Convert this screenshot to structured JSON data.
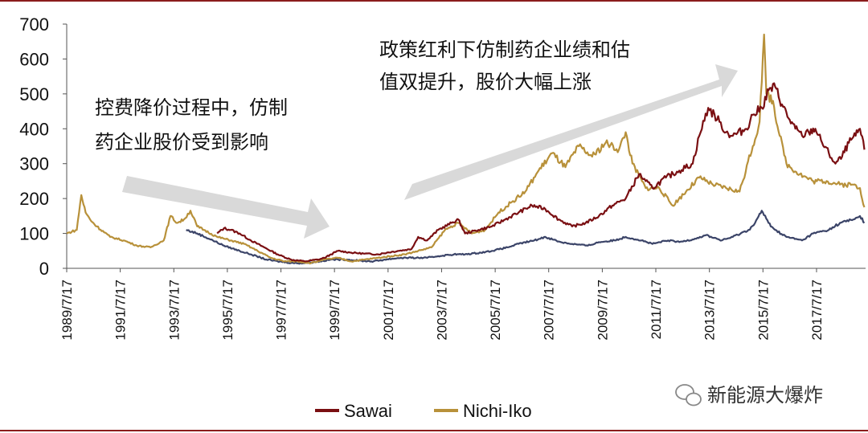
{
  "chart_data": {
    "type": "line",
    "title": "",
    "xlabel": "",
    "ylabel": "",
    "ylim": [
      0,
      700
    ],
    "yticks": [
      0,
      100,
      200,
      300,
      400,
      500,
      600,
      700
    ],
    "x_tick_labels": [
      "1989/7/17",
      "1991/7/17",
      "1993/7/17",
      "1995/7/17",
      "1997/7/17",
      "1999/7/17",
      "2001/7/17",
      "2003/7/17",
      "2005/7/17",
      "2007/7/17",
      "2009/7/17",
      "2011/7/17",
      "2013/7/17",
      "2015/7/17",
      "2017/7/17"
    ],
    "grid": false,
    "legend_position": "bottom",
    "series": [
      {
        "name": "Sawai",
        "color": "#7a0f12",
        "points": [
          [
            "1995/3/1",
            100
          ],
          [
            "1995/6/1",
            115
          ],
          [
            "1995/9/1",
            110
          ],
          [
            "1996/1/1",
            100
          ],
          [
            "1996/6/1",
            80
          ],
          [
            "1996/12/1",
            60
          ],
          [
            "1997/6/1",
            40
          ],
          [
            "1997/12/1",
            25
          ],
          [
            "1998/6/1",
            20
          ],
          [
            "1998/12/1",
            25
          ],
          [
            "1999/3/1",
            30
          ],
          [
            "1999/6/1",
            40
          ],
          [
            "1999/9/1",
            50
          ],
          [
            "2000/3/1",
            45
          ],
          [
            "2000/9/1",
            42
          ],
          [
            "2001/3/1",
            40
          ],
          [
            "2001/7/1",
            45
          ],
          [
            "2001/12/1",
            50
          ],
          [
            "2002/6/1",
            55
          ],
          [
            "2002/9/1",
            90
          ],
          [
            "2003/1/1",
            80
          ],
          [
            "2003/6/1",
            110
          ],
          [
            "2003/12/1",
            130
          ],
          [
            "2004/3/1",
            140
          ],
          [
            "2004/6/1",
            100
          ],
          [
            "2004/12/1",
            110
          ],
          [
            "2005/6/1",
            120
          ],
          [
            "2005/12/1",
            140
          ],
          [
            "2006/6/1",
            160
          ],
          [
            "2006/12/1",
            180
          ],
          [
            "2007/6/1",
            170
          ],
          [
            "2007/12/1",
            140
          ],
          [
            "2008/6/1",
            120
          ],
          [
            "2008/12/1",
            130
          ],
          [
            "2009/6/1",
            150
          ],
          [
            "2009/12/1",
            180
          ],
          [
            "2010/6/1",
            200
          ],
          [
            "2010/12/1",
            270
          ],
          [
            "2011/3/1",
            250
          ],
          [
            "2011/6/1",
            230
          ],
          [
            "2011/12/1",
            260
          ],
          [
            "2012/6/1",
            280
          ],
          [
            "2012/12/1",
            300
          ],
          [
            "2013/3/1",
            380
          ],
          [
            "2013/7/1",
            460
          ],
          [
            "2013/12/1",
            420
          ],
          [
            "2014/3/1",
            390
          ],
          [
            "2014/6/1",
            380
          ],
          [
            "2014/12/1",
            400
          ],
          [
            "2015/3/1",
            440
          ],
          [
            "2015/7/1",
            460
          ],
          [
            "2015/10/1",
            510
          ],
          [
            "2016/1/1",
            520
          ],
          [
            "2016/4/1",
            470
          ],
          [
            "2016/7/1",
            430
          ],
          [
            "2016/10/1",
            400
          ],
          [
            "2017/1/1",
            380
          ],
          [
            "2017/4/1",
            390
          ],
          [
            "2017/7/1",
            400
          ],
          [
            "2017/10/1",
            360
          ],
          [
            "2018/1/1",
            330
          ],
          [
            "2018/4/1",
            300
          ],
          [
            "2018/7/1",
            320
          ],
          [
            "2018/10/1",
            360
          ],
          [
            "2019/1/1",
            380
          ],
          [
            "2019/3/1",
            400
          ],
          [
            "2019/5/1",
            340
          ]
        ]
      },
      {
        "name": "Nichi-Iko",
        "color": "#b8913a",
        "points": [
          [
            "1989/7/17",
            100
          ],
          [
            "1989/12/1",
            110
          ],
          [
            "1990/2/1",
            210
          ],
          [
            "1990/4/1",
            160
          ],
          [
            "1990/6/1",
            140
          ],
          [
            "1990/9/1",
            120
          ],
          [
            "1991/3/1",
            90
          ],
          [
            "1991/9/1",
            80
          ],
          [
            "1992/3/1",
            65
          ],
          [
            "1992/9/1",
            60
          ],
          [
            "1993/3/1",
            80
          ],
          [
            "1993/6/1",
            150
          ],
          [
            "1993/9/1",
            130
          ],
          [
            "1993/12/1",
            140
          ],
          [
            "1994/3/1",
            165
          ],
          [
            "1994/6/1",
            120
          ],
          [
            "1994/9/1",
            110
          ],
          [
            "1995/3/1",
            90
          ],
          [
            "1995/9/1",
            80
          ],
          [
            "1996/3/1",
            70
          ],
          [
            "1996/9/1",
            50
          ],
          [
            "1997/3/1",
            30
          ],
          [
            "1997/9/1",
            20
          ],
          [
            "1998/3/1",
            20
          ],
          [
            "1998/9/1",
            15
          ],
          [
            "1999/3/1",
            25
          ],
          [
            "1999/9/1",
            30
          ],
          [
            "2000/3/1",
            20
          ],
          [
            "2000/9/1",
            25
          ],
          [
            "2001/3/1",
            30
          ],
          [
            "2001/9/1",
            35
          ],
          [
            "2002/3/1",
            40
          ],
          [
            "2002/9/1",
            50
          ],
          [
            "2003/3/1",
            60
          ],
          [
            "2003/9/1",
            110
          ],
          [
            "2004/3/1",
            130
          ],
          [
            "2004/9/1",
            100
          ],
          [
            "2005/3/1",
            110
          ],
          [
            "2005/9/1",
            160
          ],
          [
            "2006/3/1",
            190
          ],
          [
            "2006/9/1",
            220
          ],
          [
            "2007/3/1",
            280
          ],
          [
            "2007/9/1",
            330
          ],
          [
            "2008/3/1",
            290
          ],
          [
            "2008/9/1",
            350
          ],
          [
            "2009/3/1",
            320
          ],
          [
            "2009/9/1",
            360
          ],
          [
            "2010/3/1",
            340
          ],
          [
            "2010/6/1",
            390
          ],
          [
            "2010/9/1",
            300
          ],
          [
            "2011/3/1",
            230
          ],
          [
            "2011/9/1",
            230
          ],
          [
            "2012/3/1",
            180
          ],
          [
            "2012/9/1",
            220
          ],
          [
            "2013/3/1",
            260
          ],
          [
            "2013/9/1",
            240
          ],
          [
            "2014/3/1",
            230
          ],
          [
            "2014/9/1",
            220
          ],
          [
            "2015/3/1",
            350
          ],
          [
            "2015/6/1",
            420
          ],
          [
            "2015/8/1",
            670
          ],
          [
            "2015/9/1",
            500
          ],
          [
            "2015/12/1",
            480
          ],
          [
            "2016/3/1",
            380
          ],
          [
            "2016/6/1",
            300
          ],
          [
            "2016/12/1",
            270
          ],
          [
            "2017/6/1",
            250
          ],
          [
            "2017/12/1",
            250
          ],
          [
            "2018/6/1",
            240
          ],
          [
            "2018/12/1",
            240
          ],
          [
            "2019/3/1",
            230
          ],
          [
            "2019/5/1",
            175
          ]
        ]
      },
      {
        "name": "",
        "color": "#3b4468",
        "points": [
          [
            "1994/1/1",
            110
          ],
          [
            "1994/6/1",
            100
          ],
          [
            "1995/1/1",
            80
          ],
          [
            "1995/6/1",
            65
          ],
          [
            "1996/1/1",
            50
          ],
          [
            "1996/6/1",
            40
          ],
          [
            "1997/1/1",
            25
          ],
          [
            "1997/6/1",
            20
          ],
          [
            "1998/1/1",
            15
          ],
          [
            "1998/6/1",
            15
          ],
          [
            "1999/1/1",
            20
          ],
          [
            "1999/6/1",
            25
          ],
          [
            "2000/1/1",
            25
          ],
          [
            "2000/6/1",
            22
          ],
          [
            "2001/1/1",
            20
          ],
          [
            "2001/6/1",
            25
          ],
          [
            "2002/1/1",
            30
          ],
          [
            "2002/6/1",
            30
          ],
          [
            "2003/1/1",
            30
          ],
          [
            "2003/6/1",
            35
          ],
          [
            "2004/1/1",
            40
          ],
          [
            "2004/6/1",
            40
          ],
          [
            "2005/1/1",
            45
          ],
          [
            "2005/6/1",
            50
          ],
          [
            "2006/1/1",
            60
          ],
          [
            "2006/6/1",
            70
          ],
          [
            "2007/1/1",
            80
          ],
          [
            "2007/6/1",
            90
          ],
          [
            "2008/1/1",
            75
          ],
          [
            "2008/6/1",
            70
          ],
          [
            "2009/1/1",
            65
          ],
          [
            "2009/6/1",
            75
          ],
          [
            "2010/1/1",
            80
          ],
          [
            "2010/6/1",
            90
          ],
          [
            "2011/1/1",
            80
          ],
          [
            "2011/6/1",
            70
          ],
          [
            "2012/1/1",
            80
          ],
          [
            "2012/6/1",
            75
          ],
          [
            "2013/1/1",
            85
          ],
          [
            "2013/6/1",
            95
          ],
          [
            "2014/1/1",
            80
          ],
          [
            "2014/6/1",
            90
          ],
          [
            "2015/1/1",
            110
          ],
          [
            "2015/4/1",
            130
          ],
          [
            "2015/7/1",
            165
          ],
          [
            "2015/10/1",
            130
          ],
          [
            "2016/1/1",
            110
          ],
          [
            "2016/6/1",
            90
          ],
          [
            "2017/1/1",
            80
          ],
          [
            "2017/6/1",
            100
          ],
          [
            "2018/1/1",
            110
          ],
          [
            "2018/6/1",
            130
          ],
          [
            "2018/12/1",
            140
          ],
          [
            "2019/3/1",
            150
          ],
          [
            "2019/5/1",
            130
          ]
        ]
      }
    ],
    "annotations": [
      {
        "lines": [
          "控费降价过程中，仿制",
          "药企业股价受到影响"
        ],
        "arrow_direction": "down-right"
      },
      {
        "lines": [
          "政策红利下仿制药企业绩和估",
          "值双提升，股价大幅上涨"
        ],
        "arrow_direction": "up-right"
      }
    ]
  },
  "watermark": "新能源大爆炸"
}
